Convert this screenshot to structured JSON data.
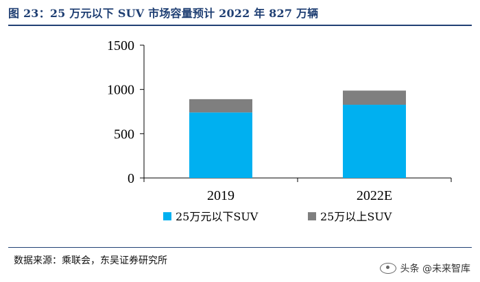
{
  "header": {
    "title": "图 23：25 万元以下 SUV 市场容量预计 2022 年 827 万辆"
  },
  "footer": {
    "source": "数据来源：乘联会，东吴证券研究所",
    "watermark": "头条 @未来智库"
  },
  "colors": {
    "title": "#1f3f73",
    "series_below": "#00b0f0",
    "series_above": "#7f7f7f"
  },
  "chart_data": {
    "type": "bar",
    "stacked": true,
    "categories": [
      "2019",
      "2022E"
    ],
    "series": [
      {
        "name": "25万元以下SUV",
        "values": [
          740,
          827
        ],
        "color": "#00b0f0"
      },
      {
        "name": "25万以上SUV",
        "values": [
          150,
          160
        ],
        "color": "#7f7f7f"
      }
    ],
    "ylim": [
      0,
      1500
    ],
    "yticks": [
      0,
      500,
      1000,
      1500
    ],
    "legend": "bottom",
    "grid": false
  }
}
